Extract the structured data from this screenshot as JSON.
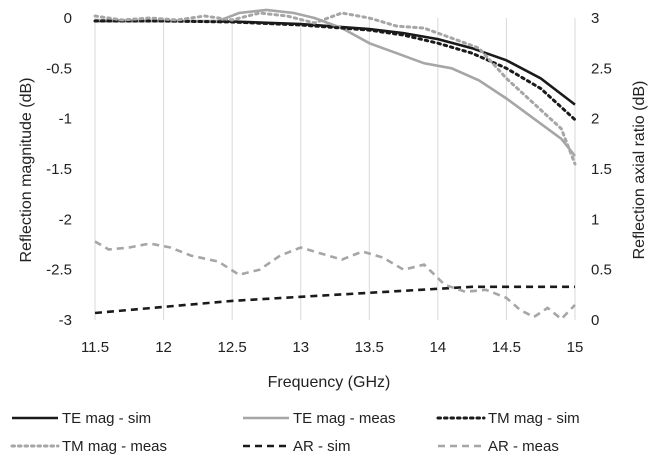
{
  "chart_data": {
    "type": "line",
    "xlabel": "Frequency (GHz)",
    "ylabel_left": "Reflection magnitude (dB)",
    "ylabel_right": "Reflection axial ratio (dB)",
    "xlim": [
      11.5,
      15
    ],
    "ylim_left": [
      -3,
      0
    ],
    "ylim_right": [
      0,
      3
    ],
    "x_ticks": [
      "11.5",
      "12",
      "12.5",
      "13",
      "13.5",
      "14",
      "14.5",
      "15"
    ],
    "y_left_ticks": [
      "0",
      "-0.5",
      "-1",
      "-1.5",
      "-2",
      "-2.5",
      "-3"
    ],
    "y_right_ticks": [
      "3",
      "2.5",
      "2",
      "1.5",
      "1",
      "0.5",
      "0"
    ],
    "grid": "vertical",
    "legend_position": "bottom",
    "series": [
      {
        "name": "TE mag - sim",
        "axis": "left",
        "color": "#1a1a1a",
        "dash": "solid",
        "points": [
          [
            11.5,
            -0.03
          ],
          [
            12,
            -0.03
          ],
          [
            12.5,
            -0.035
          ],
          [
            13,
            -0.06
          ],
          [
            13.5,
            -0.11
          ],
          [
            13.75,
            -0.15
          ],
          [
            14,
            -0.21
          ],
          [
            14.25,
            -0.3
          ],
          [
            14.5,
            -0.42
          ],
          [
            14.75,
            -0.6
          ],
          [
            15,
            -0.86
          ]
        ]
      },
      {
        "name": "TE mag - meas",
        "axis": "left",
        "color": "#a6a6a6",
        "dash": "solid",
        "points": [
          [
            11.5,
            -0.02
          ],
          [
            12,
            -0.03
          ],
          [
            12.4,
            -0.03
          ],
          [
            12.55,
            0.05
          ],
          [
            12.75,
            0.08
          ],
          [
            12.95,
            0.05
          ],
          [
            13.1,
            0.0
          ],
          [
            13.3,
            -0.1
          ],
          [
            13.5,
            -0.25
          ],
          [
            13.7,
            -0.35
          ],
          [
            13.9,
            -0.45
          ],
          [
            14.1,
            -0.5
          ],
          [
            14.3,
            -0.62
          ],
          [
            14.5,
            -0.8
          ],
          [
            14.7,
            -1.0
          ],
          [
            14.9,
            -1.2
          ],
          [
            15,
            -1.37
          ]
        ]
      },
      {
        "name": "TM mag - sim",
        "axis": "left",
        "color": "#1a1a1a",
        "dash": "dotted",
        "points": [
          [
            11.5,
            -0.03
          ],
          [
            12,
            -0.03
          ],
          [
            12.5,
            -0.04
          ],
          [
            13,
            -0.07
          ],
          [
            13.5,
            -0.12
          ],
          [
            13.75,
            -0.17
          ],
          [
            14,
            -0.25
          ],
          [
            14.25,
            -0.35
          ],
          [
            14.5,
            -0.5
          ],
          [
            14.75,
            -0.7
          ],
          [
            15,
            -1.01
          ]
        ]
      },
      {
        "name": "TM mag - meas",
        "axis": "left",
        "color": "#a6a6a6",
        "dash": "dotted",
        "points": [
          [
            11.5,
            0.02
          ],
          [
            11.7,
            -0.02
          ],
          [
            11.9,
            0.0
          ],
          [
            12.1,
            -0.02
          ],
          [
            12.3,
            0.02
          ],
          [
            12.5,
            -0.02
          ],
          [
            12.7,
            0.05
          ],
          [
            12.9,
            0.02
          ],
          [
            13.1,
            -0.05
          ],
          [
            13.3,
            0.05
          ],
          [
            13.5,
            0.0
          ],
          [
            13.7,
            -0.08
          ],
          [
            13.9,
            -0.1
          ],
          [
            14.1,
            -0.2
          ],
          [
            14.3,
            -0.3
          ],
          [
            14.5,
            -0.6
          ],
          [
            14.7,
            -0.85
          ],
          [
            14.9,
            -1.1
          ],
          [
            15,
            -1.45
          ]
        ]
      },
      {
        "name": "AR - sim",
        "axis": "right",
        "color": "#1a1a1a",
        "dash": "dashed",
        "points": [
          [
            11.5,
            0.07
          ],
          [
            12,
            0.13
          ],
          [
            12.5,
            0.19
          ],
          [
            13,
            0.23
          ],
          [
            13.5,
            0.27
          ],
          [
            14,
            0.31
          ],
          [
            14.25,
            0.33
          ],
          [
            14.5,
            0.33
          ],
          [
            15,
            0.33
          ]
        ]
      },
      {
        "name": "AR - meas",
        "axis": "right",
        "color": "#a6a6a6",
        "dash": "dashed",
        "points": [
          [
            11.5,
            0.78
          ],
          [
            11.6,
            0.7
          ],
          [
            11.75,
            0.72
          ],
          [
            11.9,
            0.76
          ],
          [
            12.05,
            0.72
          ],
          [
            12.2,
            0.64
          ],
          [
            12.4,
            0.58
          ],
          [
            12.55,
            0.45
          ],
          [
            12.7,
            0.5
          ],
          [
            12.85,
            0.64
          ],
          [
            13.0,
            0.72
          ],
          [
            13.15,
            0.66
          ],
          [
            13.3,
            0.6
          ],
          [
            13.45,
            0.68
          ],
          [
            13.6,
            0.62
          ],
          [
            13.75,
            0.5
          ],
          [
            13.9,
            0.55
          ],
          [
            14.05,
            0.35
          ],
          [
            14.2,
            0.28
          ],
          [
            14.35,
            0.3
          ],
          [
            14.5,
            0.22
          ],
          [
            14.6,
            0.1
          ],
          [
            14.7,
            0.03
          ],
          [
            14.8,
            0.12
          ],
          [
            14.9,
            0.01
          ],
          [
            15,
            0.15
          ]
        ]
      }
    ]
  }
}
